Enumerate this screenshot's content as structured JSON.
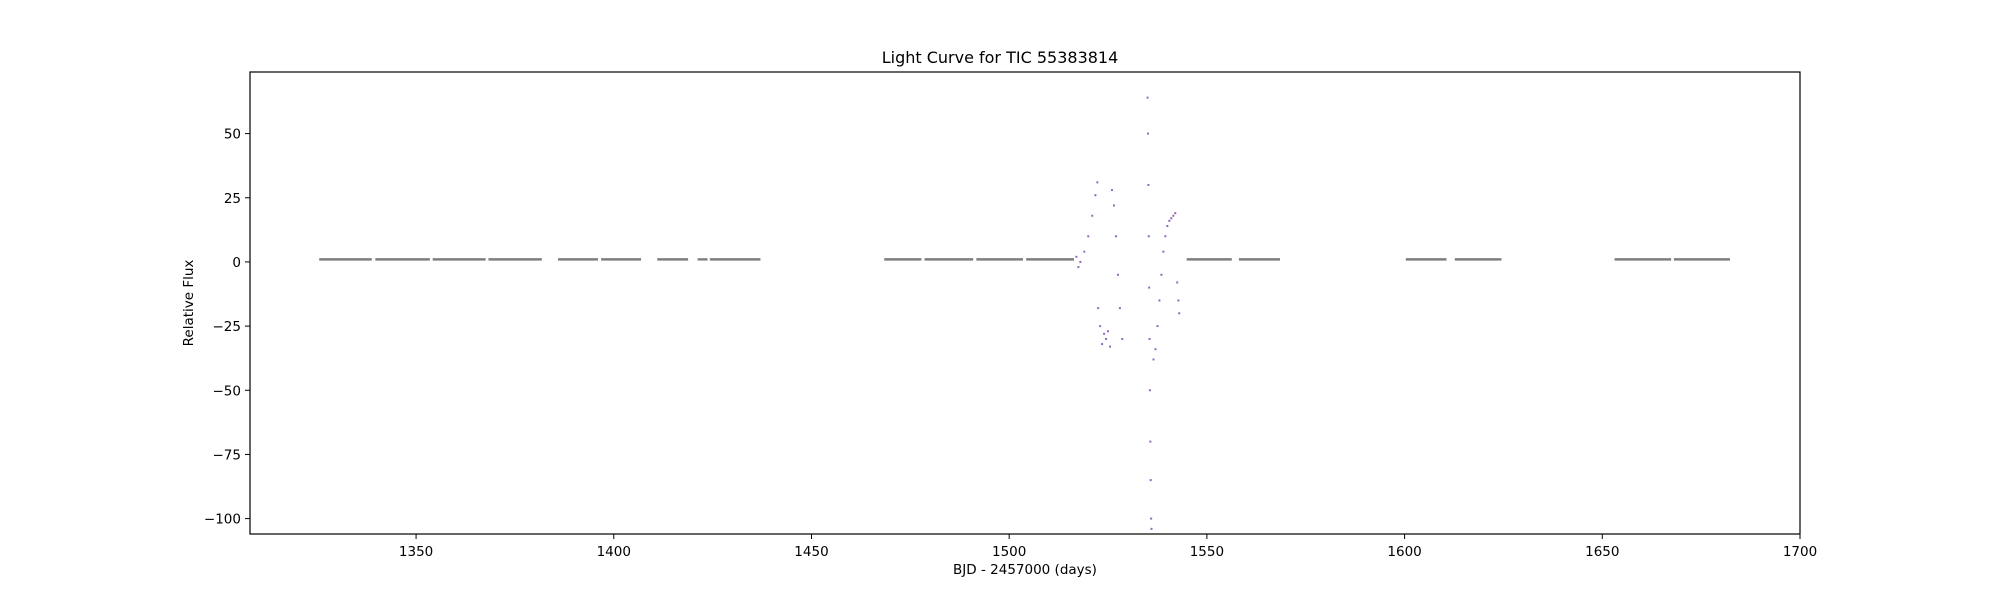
{
  "chart_data": {
    "type": "scatter",
    "title": "Light Curve for TIC 55383814",
    "xlabel": "BJD - 2457000 (days)",
    "ylabel": "Relative Flux",
    "xlim": [
      1308,
      1700
    ],
    "ylim": [
      -106,
      74
    ],
    "xticks": [
      1350,
      1400,
      1450,
      1500,
      1550,
      1600,
      1650,
      1700
    ],
    "yticks": [
      50,
      25,
      0,
      -25,
      -50,
      -75,
      -100
    ],
    "xtick_labels": [
      "1350",
      "1400",
      "1450",
      "1500",
      "1550",
      "1600",
      "1650",
      "1700"
    ],
    "ytick_labels": [
      "50",
      "25",
      "0",
      "−25",
      "−50",
      "−75",
      "−100"
    ],
    "grid": false,
    "colors": {
      "flat_series": "#7f7f7f",
      "variable_series": "#9467bd"
    },
    "flat_segments": [
      [
        1325.5,
        1338.8
      ],
      [
        1339.7,
        1353.5
      ],
      [
        1354.2,
        1367.6
      ],
      [
        1368.3,
        1381.8
      ],
      [
        1385.9,
        1396.0
      ],
      [
        1396.8,
        1406.9
      ],
      [
        1411.0,
        1418.8
      ],
      [
        1421.2,
        1423.7
      ],
      [
        1424.3,
        1437.1
      ],
      [
        1468.4,
        1477.8
      ],
      [
        1478.6,
        1490.9
      ],
      [
        1491.7,
        1503.5
      ],
      [
        1504.3,
        1516.4
      ],
      [
        1544.9,
        1556.3
      ],
      [
        1558.1,
        1568.5
      ],
      [
        1600.3,
        1610.6
      ],
      [
        1612.7,
        1624.5
      ],
      [
        1653.1,
        1667.4
      ],
      [
        1668.1,
        1682.3
      ]
    ],
    "variable_points": [
      [
        1517.0,
        2
      ],
      [
        1517.5,
        -2
      ],
      [
        1518.0,
        0
      ],
      [
        1519.0,
        4
      ],
      [
        1520.0,
        10
      ],
      [
        1521.0,
        18
      ],
      [
        1521.8,
        26
      ],
      [
        1522.3,
        31
      ],
      [
        1522.5,
        -18
      ],
      [
        1523.0,
        -25
      ],
      [
        1523.5,
        -32
      ],
      [
        1524.0,
        -28
      ],
      [
        1524.5,
        -30
      ],
      [
        1525.0,
        -27
      ],
      [
        1525.5,
        -33
      ],
      [
        1526.0,
        28
      ],
      [
        1526.5,
        22
      ],
      [
        1527.0,
        10
      ],
      [
        1527.5,
        -5
      ],
      [
        1528.0,
        -18
      ],
      [
        1528.6,
        -30
      ],
      [
        1535.0,
        64
      ],
      [
        1535.1,
        50
      ],
      [
        1535.2,
        30
      ],
      [
        1535.3,
        10
      ],
      [
        1535.4,
        -10
      ],
      [
        1535.5,
        -30
      ],
      [
        1535.6,
        -50
      ],
      [
        1535.7,
        -70
      ],
      [
        1535.8,
        -85
      ],
      [
        1535.9,
        -100
      ],
      [
        1536.0,
        -104
      ],
      [
        1536.5,
        -38
      ],
      [
        1537.0,
        -34
      ],
      [
        1537.5,
        -25
      ],
      [
        1538.0,
        -15
      ],
      [
        1538.5,
        -5
      ],
      [
        1539.0,
        4
      ],
      [
        1539.5,
        10
      ],
      [
        1540.0,
        14
      ],
      [
        1540.5,
        16
      ],
      [
        1541.0,
        17
      ],
      [
        1541.5,
        18
      ],
      [
        1542.0,
        19
      ],
      [
        1542.5,
        -8
      ],
      [
        1542.8,
        -15
      ],
      [
        1543.0,
        -20
      ]
    ]
  }
}
